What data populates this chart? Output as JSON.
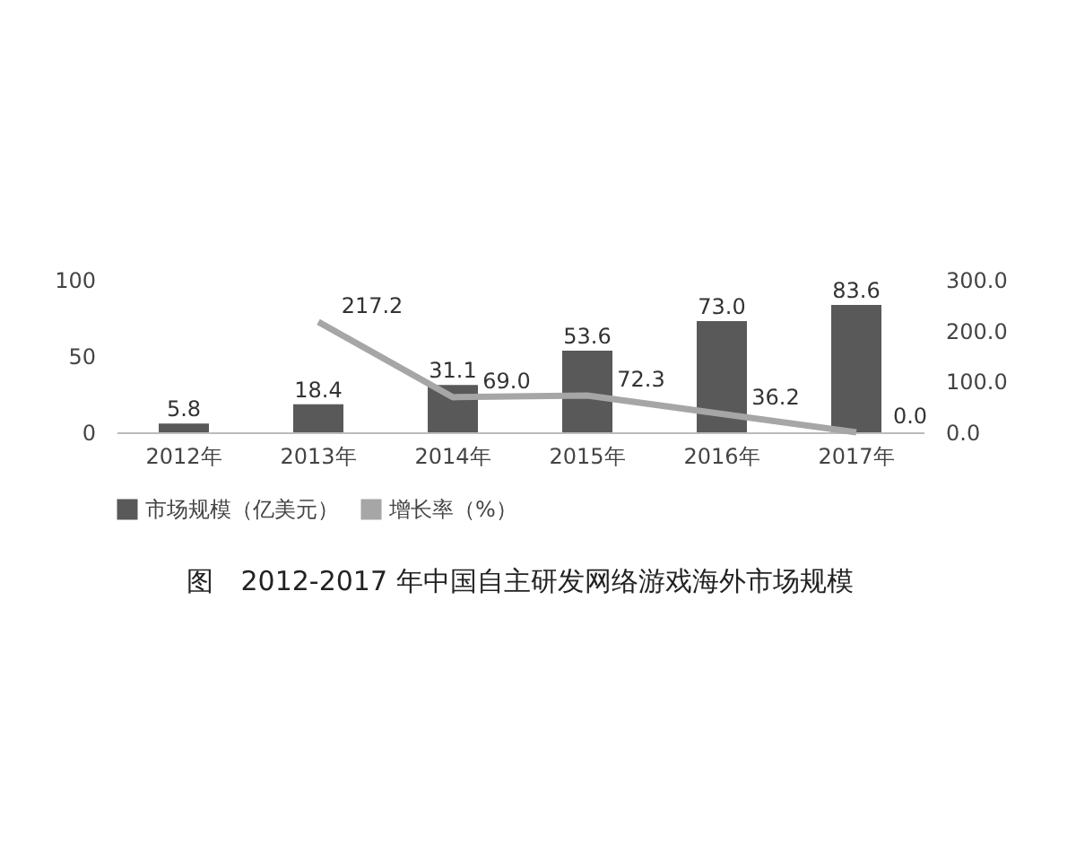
{
  "chart_data": {
    "type": "bar",
    "title": "图　2012-2017 年中国自主研发网络游戏海外市场规模",
    "categories": [
      "2012年",
      "2013年",
      "2014年",
      "2015年",
      "2016年",
      "2017年"
    ],
    "series": [
      {
        "name": "市场规模（亿美元）",
        "color": "#595959",
        "values": [
          5.8,
          18.4,
          31.1,
          53.6,
          73.0,
          83.6
        ],
        "value_labels": [
          "5.8",
          "18.4",
          "31.1",
          "53.6",
          "73.0",
          "83.6"
        ]
      },
      {
        "name": "增长率（%）",
        "type": "line",
        "axis": "y2",
        "color": "#a6a6a6",
        "values": [
          null,
          217.2,
          69.0,
          72.3,
          36.2,
          0.0
        ],
        "value_labels": [
          null,
          "217.2",
          "69.0",
          "72.3",
          "36.2",
          "0.0"
        ]
      }
    ],
    "ylim": [
      0,
      100
    ],
    "yticks": [
      0,
      50,
      100
    ],
    "y2lim": [
      0,
      300
    ],
    "y2ticks": [
      {
        "value": 0,
        "label": "0.0"
      },
      {
        "value": 100,
        "label": "100.0"
      },
      {
        "value": 200,
        "label": "200.0"
      },
      {
        "value": 300,
        "label": "300.0"
      }
    ],
    "legend": "bottom",
    "marker": "none"
  }
}
